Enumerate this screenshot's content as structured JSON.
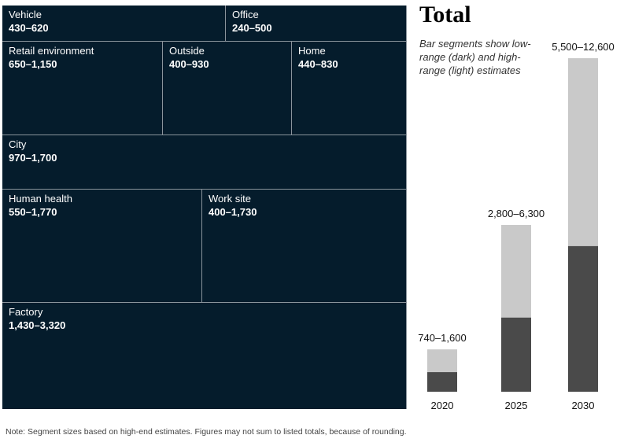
{
  "chart_data": [
    {
      "type": "treemap",
      "cells": [
        {
          "name": "Vehicle",
          "range": "430–620",
          "low": 430,
          "high": 620
        },
        {
          "name": "Office",
          "range": "240–500",
          "low": 240,
          "high": 500
        },
        {
          "name": "Retail environment",
          "range": "650–1,150",
          "low": 650,
          "high": 1150
        },
        {
          "name": "Outside",
          "range": "400–930",
          "low": 400,
          "high": 930
        },
        {
          "name": "Home",
          "range": "440–830",
          "low": 440,
          "high": 830
        },
        {
          "name": "City",
          "range": "970–1,700",
          "low": 970,
          "high": 1700
        },
        {
          "name": "Human health",
          "range": "550–1,770",
          "low": 550,
          "high": 1770
        },
        {
          "name": "Work site",
          "range": "400–1,730",
          "low": 400,
          "high": 1730
        },
        {
          "name": "Factory",
          "range": "1,430–3,320",
          "low": 1430,
          "high": 3320
        }
      ]
    },
    {
      "type": "bar",
      "title": "Total",
      "note": "Bar segments show low-range (dark) and high-range (light) estimates",
      "categories": [
        "2020",
        "2025",
        "2030"
      ],
      "labels": [
        "740–1,600",
        "2,800–6,300",
        "5,500–12,600"
      ],
      "series": [
        {
          "name": "low-range",
          "values": [
            740,
            2800,
            5500
          ]
        },
        {
          "name": "high-range",
          "values": [
            1600,
            6300,
            12600
          ]
        }
      ],
      "ylim": [
        0,
        12600
      ]
    }
  ],
  "colors": {
    "treemap_fill": "#051c2c",
    "low_segment": "#4a4a4a",
    "high_segment": "#c9c9c9"
  },
  "footnote": "Note: Segment sizes based on high-end estimates. Figures may not sum to listed totals, because of rounding."
}
